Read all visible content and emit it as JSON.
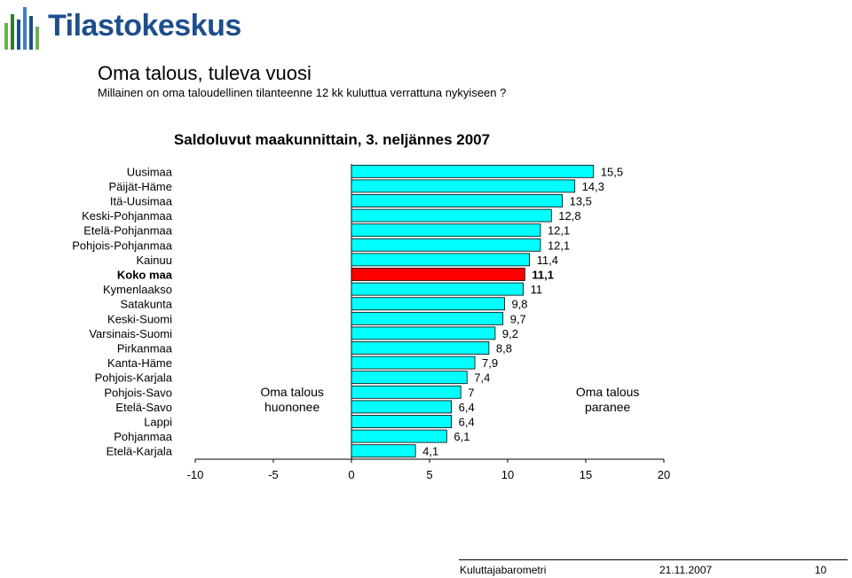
{
  "logo": {
    "text": "Tilastokeskus",
    "icon": "tilastokeskus-logo-icon"
  },
  "header": {
    "title": "Oma talous, tuleva vuosi",
    "subtitle": "Millainen on oma taloudellinen tilanteenne 12 kk kuluttua verrattuna nykyiseen ?"
  },
  "chart_data": {
    "type": "bar",
    "orientation": "horizontal",
    "title": "Saldoluvut maakunnittain, 3. neljännes 2007",
    "categories": [
      "Uusimaa",
      "Päijät-Häme",
      "Itä-Uusimaa",
      "Keski-Pohjanmaa",
      "Etelä-Pohjanmaa",
      "Pohjois-Pohjanmaa",
      "Kainuu",
      "Koko maa",
      "Kymenlaakso",
      "Satakunta",
      "Keski-Suomi",
      "Varsinais-Suomi",
      "Pirkanmaa",
      "Kanta-Häme",
      "Pohjois-Karjala",
      "Pohjois-Savo",
      "Etelä-Savo",
      "Lappi",
      "Pohjanmaa",
      "Etelä-Karjala"
    ],
    "values": [
      15.5,
      14.3,
      13.5,
      12.8,
      12.1,
      12.1,
      11.4,
      11.1,
      11,
      9.8,
      9.7,
      9.2,
      8.8,
      7.9,
      7.4,
      7,
      6.4,
      6.4,
      6.1,
      4.1
    ],
    "value_labels": [
      "15,5",
      "14,3",
      "13,5",
      "12,8",
      "12,1",
      "12,1",
      "11,4",
      "11,1",
      "11",
      "9,8",
      "9,7",
      "9,2",
      "8,8",
      "7,9",
      "7,4",
      "7",
      "6,4",
      "6,4",
      "6,1",
      "4,1"
    ],
    "highlight_category": "Koko maa",
    "xlim": [
      -10,
      20
    ],
    "xticks": [
      -10,
      -5,
      0,
      5,
      10,
      15,
      20
    ],
    "xtick_labels": [
      "-10",
      "-5",
      "0",
      "5",
      "10",
      "15",
      "20"
    ],
    "grid": false,
    "colors": {
      "bar": "#00ffff",
      "highlight": "#ff0000",
      "bar_outline": "#000000"
    },
    "annotations": [
      {
        "text_lines": [
          "Oma talous",
          "huononee"
        ],
        "x": -3.8
      },
      {
        "text_lines": [
          "Oma talous",
          "paranee"
        ],
        "x": 16.4
      }
    ]
  },
  "footer": {
    "source": "Kuluttajabarometri",
    "date": "21.11.2007",
    "page": "10"
  }
}
